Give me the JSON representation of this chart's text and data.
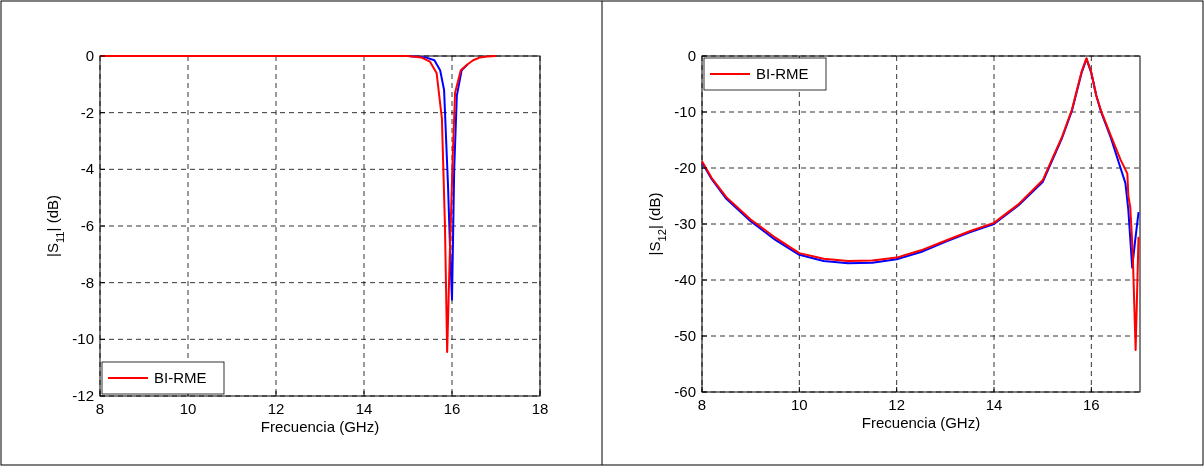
{
  "chart_data": [
    {
      "type": "line",
      "xlabel": "Frecuencia (GHz)",
      "ylabel": "|S$_{11}$| (dB)",
      "xlim": [
        8,
        18
      ],
      "ylim": [
        -12,
        0
      ],
      "xticks": [
        8,
        10,
        12,
        14,
        16,
        18
      ],
      "yticks": [
        -12,
        -10,
        -8,
        -6,
        -4,
        -2,
        0
      ],
      "grid": true,
      "legend": "bottom left",
      "line_style": "solid",
      "series": [
        {
          "color": "#0000ff",
          "x": [
            15,
            15.4,
            15.6,
            15.73,
            15.82,
            15.91,
            15.96,
            16.0,
            16.05,
            16.11,
            16.22,
            16.35
          ],
          "values": [
            0,
            -0.05,
            -0.15,
            -0.5,
            -1.2,
            -4.6,
            -7,
            -8.6,
            -4,
            -1.4,
            -0.5,
            -0.3
          ]
        },
        {
          "name": "BI-RME",
          "color": "#ff0000",
          "x": [
            8,
            10,
            12,
            14,
            15,
            15.3,
            15.5,
            15.65,
            15.77,
            15.84,
            15.89,
            15.95,
            16.02,
            16.07,
            16.2,
            16.35,
            16.48,
            16.64,
            16.8,
            17
          ],
          "values": [
            0,
            0,
            0,
            0,
            0,
            -0.05,
            -0.2,
            -0.6,
            -2.2,
            -6,
            -10.45,
            -7,
            -3.4,
            -1.3,
            -0.5,
            -0.3,
            -0.15,
            -0.05,
            -0.02,
            0
          ]
        }
      ]
    },
    {
      "type": "line",
      "xlabel": "Frecuencia (GHz)",
      "ylabel": "|S$_{12}$| (dB)",
      "xlim": [
        8,
        17
      ],
      "ylim": [
        -60,
        0
      ],
      "xticks": [
        8,
        10,
        12,
        14,
        16
      ],
      "yticks": [
        -60,
        -50,
        -40,
        -30,
        -20,
        -10,
        0
      ],
      "grid": true,
      "legend": "top left",
      "line_style": "solid",
      "series": [
        {
          "color": "#0000ff",
          "x": [
            8,
            8.2,
            8.5,
            9,
            9.5,
            10,
            10.5,
            11,
            11.5,
            12,
            12.5,
            13,
            13.5,
            14,
            14.5,
            15,
            15.4,
            15.6,
            15.8,
            15.9,
            16,
            16.1,
            16.2,
            16.4,
            16.6,
            16.7,
            16.76,
            16.84,
            16.9,
            16.97
          ],
          "values": [
            -19,
            -22,
            -25.5,
            -29.5,
            -32.8,
            -35.5,
            -36.6,
            -37,
            -36.9,
            -36.3,
            -35,
            -33.2,
            -31.5,
            -30,
            -26.7,
            -22.5,
            -14.6,
            -9.8,
            -3,
            -0.5,
            -3,
            -7,
            -10,
            -14.6,
            -20,
            -22.7,
            -27.5,
            -37.8,
            -33,
            -27.9
          ]
        },
        {
          "name": "BI-RME",
          "color": "#ff0000",
          "x": [
            8,
            8.2,
            8.5,
            9,
            9.5,
            10,
            10.5,
            11,
            11.5,
            12,
            12.5,
            13,
            13.5,
            14,
            14.5,
            15,
            15.4,
            15.6,
            15.8,
            15.9,
            16,
            16.1,
            16.2,
            16.4,
            16.6,
            16.74,
            16.76,
            16.8,
            16.85,
            16.91,
            16.97
          ],
          "values": [
            -18.8,
            -21.8,
            -25.2,
            -29.2,
            -32.4,
            -35.2,
            -36.2,
            -36.6,
            -36.5,
            -36,
            -34.7,
            -33,
            -31.3,
            -29.8,
            -26.5,
            -22.2,
            -14.4,
            -9.6,
            -2.8,
            -0.4,
            -3,
            -7,
            -9.8,
            -14.2,
            -18.5,
            -21,
            -25,
            -27,
            -35,
            -52.5,
            -32.3
          ]
        }
      ]
    }
  ]
}
